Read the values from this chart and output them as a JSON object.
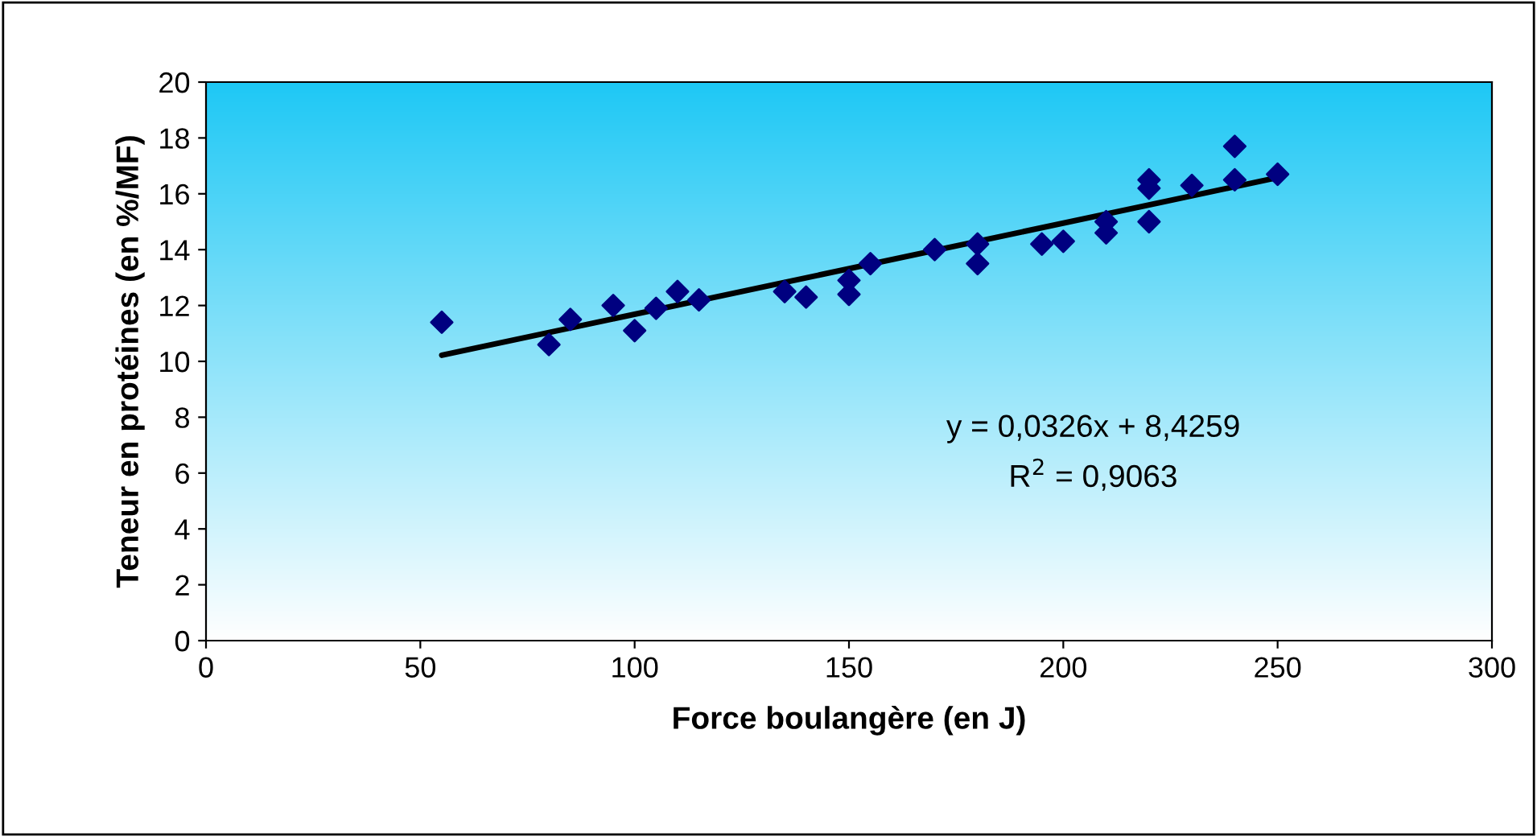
{
  "chart_data": {
    "type": "scatter",
    "xlabel": "Force boulangère (en J)",
    "ylabel": "Teneur en protéines (en %/MF)",
    "xlim": [
      0,
      300
    ],
    "xticks": [
      0,
      50,
      100,
      150,
      200,
      250,
      300
    ],
    "ylim": [
      0,
      20
    ],
    "yticks": [
      0,
      2,
      4,
      6,
      8,
      10,
      12,
      14,
      16,
      18,
      20
    ],
    "grid": false,
    "series": [
      {
        "marker": "diamond",
        "color": "#000080",
        "x": [
          55,
          80,
          85,
          95,
          100,
          105,
          110,
          115,
          135,
          140,
          150,
          150,
          155,
          170,
          180,
          180,
          195,
          200,
          210,
          210,
          220,
          220,
          220,
          230,
          240,
          240,
          250
        ],
        "values": [
          11.4,
          10.6,
          11.5,
          12.0,
          11.1,
          11.9,
          12.5,
          12.2,
          12.5,
          12.3,
          12.4,
          12.9,
          13.5,
          14.0,
          14.2,
          13.5,
          14.2,
          14.3,
          14.6,
          15.0,
          15.0,
          16.2,
          16.5,
          16.3,
          17.7,
          16.5,
          16.7
        ]
      },
      {
        "type": "line",
        "marker": "none",
        "color": "#000000",
        "x": [
          55,
          250
        ],
        "values": [
          10.22,
          16.58
        ]
      }
    ],
    "annotations": [
      "y = 0,0326x + 8,4259",
      "R$^{2}$ = 0,9063"
    ]
  }
}
